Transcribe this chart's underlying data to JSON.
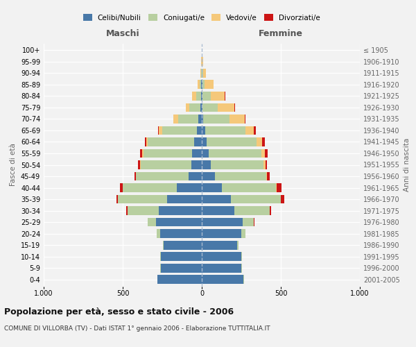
{
  "title": "Popolazione per età, sesso e stato civile - 2006",
  "subtitle": "COMUNE DI VILLORBA (TV) - Dati ISTAT 1° gennaio 2006 - Elaborazione TUTTITALIA.IT",
  "left_label": "Maschi",
  "right_label": "Femmine",
  "ylabel_left": "Fasce di età",
  "ylabel_right": "Anni di nascita",
  "age_groups": [
    "0-4",
    "5-9",
    "10-14",
    "15-19",
    "20-24",
    "25-29",
    "30-34",
    "35-39",
    "40-44",
    "45-49",
    "50-54",
    "55-59",
    "60-64",
    "65-69",
    "70-74",
    "75-79",
    "80-84",
    "85-89",
    "90-94",
    "95-99",
    "100+"
  ],
  "birth_years": [
    "2001-2005",
    "1996-2000",
    "1991-1995",
    "1986-1990",
    "1981-1985",
    "1976-1980",
    "1971-1975",
    "1966-1970",
    "1961-1965",
    "1956-1960",
    "1951-1955",
    "1946-1950",
    "1941-1945",
    "1936-1940",
    "1931-1935",
    "1926-1930",
    "1921-1925",
    "1916-1920",
    "1911-1915",
    "1906-1910",
    "≤ 1905"
  ],
  "colors": {
    "celibi": "#4878a8",
    "coniugati": "#b8cfa0",
    "vedovi": "#f5c87a",
    "divorziati": "#cc1515"
  },
  "males": {
    "celibi": [
      280,
      260,
      260,
      240,
      265,
      290,
      270,
      220,
      160,
      85,
      65,
      60,
      50,
      30,
      20,
      8,
      5,
      4,
      2,
      1,
      1
    ],
    "coniugati": [
      2,
      2,
      5,
      5,
      20,
      50,
      200,
      310,
      340,
      330,
      320,
      310,
      290,
      220,
      130,
      70,
      30,
      8,
      3,
      1,
      0
    ],
    "vedovi": [
      0,
      0,
      0,
      0,
      0,
      0,
      1,
      1,
      2,
      3,
      5,
      8,
      10,
      20,
      30,
      25,
      28,
      15,
      5,
      2,
      0
    ],
    "divorziati": [
      0,
      0,
      0,
      0,
      0,
      0,
      5,
      10,
      15,
      8,
      12,
      12,
      10,
      8,
      2,
      0,
      0,
      0,
      0,
      0,
      0
    ]
  },
  "females": {
    "nubili": [
      265,
      250,
      250,
      225,
      250,
      260,
      205,
      185,
      125,
      82,
      55,
      42,
      30,
      20,
      10,
      5,
      5,
      4,
      2,
      1,
      1
    ],
    "coniugate": [
      2,
      3,
      5,
      8,
      25,
      70,
      225,
      315,
      345,
      325,
      335,
      335,
      315,
      255,
      165,
      95,
      50,
      15,
      5,
      1,
      0
    ],
    "vedove": [
      0,
      0,
      0,
      0,
      0,
      0,
      1,
      2,
      3,
      5,
      12,
      20,
      35,
      55,
      95,
      105,
      90,
      55,
      20,
      5,
      1
    ],
    "divorziate": [
      0,
      0,
      0,
      0,
      0,
      2,
      8,
      20,
      32,
      20,
      10,
      18,
      18,
      12,
      8,
      5,
      2,
      0,
      0,
      0,
      0
    ]
  },
  "xlim": 1000,
  "background_color": "#f2f2f2"
}
